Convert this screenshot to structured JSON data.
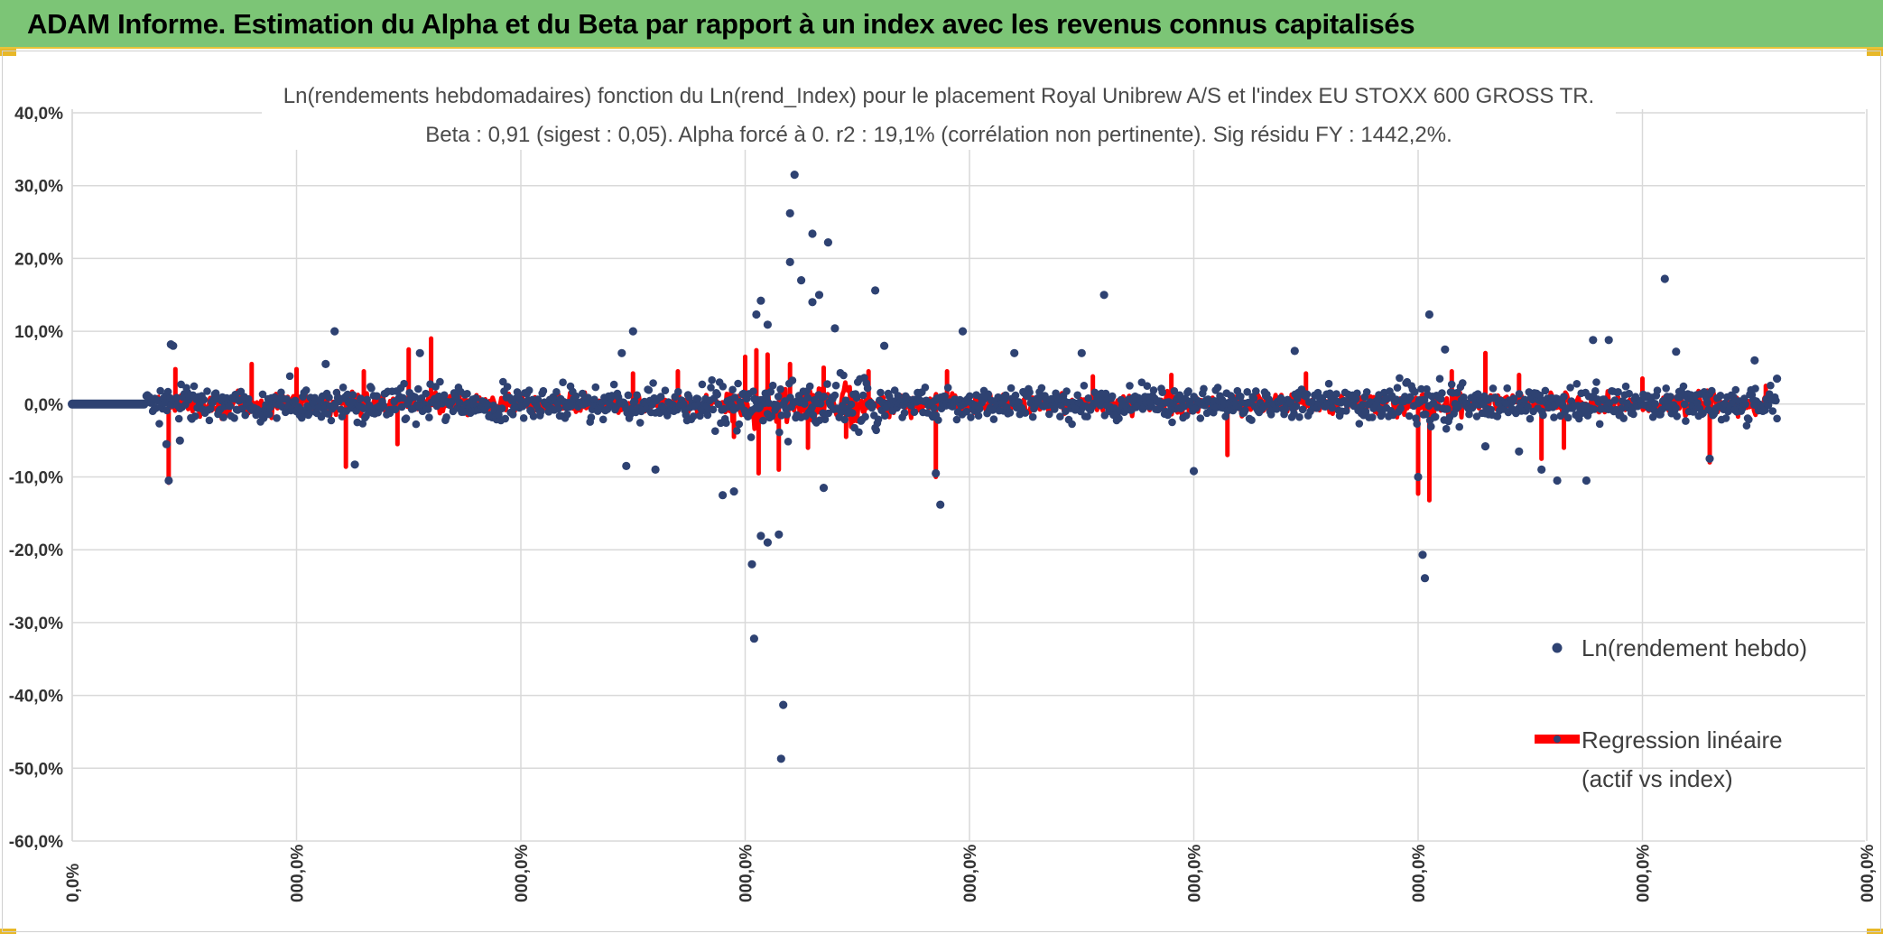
{
  "banner": {
    "title": "ADAM Informe. Estimation du Alpha et du Beta par rapport à un index avec les revenus connus capitalisés",
    "background": "#7cc576"
  },
  "chart_data": {
    "type": "scatter",
    "title_line1": "Ln(rendements hebdomadaires) fonction du Ln(rend_Index) pour le placement Royal Unibrew A/S et l'index EU STOXX 600 GROSS TR.",
    "title_line2": "Beta : 0,91 (sigest : 0,05). Alpha forcé à 0. r2 : 19,1% (corrélation non pertinente). Sig résidu FY : 1442,2%.",
    "xlabel": "",
    "ylabel": "",
    "ylim": [
      -60,
      40
    ],
    "y_ticks": [
      "40,0%",
      "30,0%",
      "20,0%",
      "10,0%",
      "0,0%",
      "-10,0%",
      "-20,0%",
      "-30,0%",
      "-40,0%",
      "-50,0%",
      "-60,0%"
    ],
    "x_ticks": [
      "0,0%",
      "000,0%",
      "000,0%",
      "000,0%",
      "000,0%",
      "000,0%",
      "000,0%",
      "000,0%",
      "000,0%"
    ],
    "grid": true,
    "legend_position": "right",
    "series": [
      {
        "name": "Ln(rendement hebdo)",
        "kind": "points",
        "color": "#2e4272"
      },
      {
        "name": "Regression linéaire (actif vs index)",
        "kind": "line",
        "color": "#ff0000"
      }
    ],
    "legend": {
      "points_label": "Ln(rendement hebdo)",
      "line_label_1": "Regression linéaire",
      "line_label_2": "(actif vs index)"
    },
    "flat_segment": {
      "x": [
        0,
        0.32
      ],
      "y": 0
    },
    "outliers": [
      [
        0.43,
        -10.5
      ],
      [
        0.44,
        8.2
      ],
      [
        0.45,
        8.0
      ],
      [
        0.42,
        -5.5
      ],
      [
        0.48,
        -5.0
      ],
      [
        1.17,
        10.0
      ],
      [
        1.13,
        5.5
      ],
      [
        1.26,
        -8.3
      ],
      [
        1.55,
        7.0
      ],
      [
        2.45,
        7.0
      ],
      [
        2.5,
        10.0
      ],
      [
        2.47,
        -8.5
      ],
      [
        2.6,
        -9.0
      ],
      [
        2.9,
        -12.5
      ],
      [
        2.95,
        -12.0
      ],
      [
        3.05,
        12.3
      ],
      [
        3.07,
        14.2
      ],
      [
        3.1,
        10.9
      ],
      [
        3.03,
        -22.0
      ],
      [
        3.04,
        -32.2
      ],
      [
        3.07,
        -18.1
      ],
      [
        3.1,
        -19.0
      ],
      [
        3.15,
        -17.9
      ],
      [
        3.17,
        -41.3
      ],
      [
        3.16,
        -48.7
      ],
      [
        3.2,
        26.2
      ],
      [
        3.22,
        31.5
      ],
      [
        3.2,
        19.5
      ],
      [
        3.25,
        17.0
      ],
      [
        3.3,
        23.4
      ],
      [
        3.33,
        15.0
      ],
      [
        3.37,
        22.2
      ],
      [
        3.3,
        14.0
      ],
      [
        3.4,
        10.4
      ],
      [
        3.35,
        -11.5
      ],
      [
        3.58,
        15.6
      ],
      [
        3.62,
        8.0
      ],
      [
        3.87,
        -13.8
      ],
      [
        3.85,
        -9.5
      ],
      [
        3.97,
        10.0
      ],
      [
        4.2,
        7.0
      ],
      [
        4.6,
        15.0
      ],
      [
        4.5,
        7.0
      ],
      [
        5.0,
        -9.2
      ],
      [
        5.45,
        7.3
      ],
      [
        6.0,
        -10.0
      ],
      [
        6.02,
        -20.7
      ],
      [
        6.03,
        -23.9
      ],
      [
        6.05,
        12.3
      ],
      [
        6.12,
        7.5
      ],
      [
        6.3,
        -5.8
      ],
      [
        6.45,
        -6.5
      ],
      [
        6.55,
        -9.0
      ],
      [
        6.62,
        -10.5
      ],
      [
        6.75,
        -10.5
      ],
      [
        6.78,
        8.8
      ],
      [
        6.85,
        8.8
      ],
      [
        7.1,
        17.2
      ],
      [
        7.15,
        7.2
      ],
      [
        7.3,
        -7.5
      ],
      [
        7.5,
        6.0
      ],
      [
        7.6,
        3.5
      ]
    ],
    "red_spikes": [
      [
        0.43,
        -10.8
      ],
      [
        0.46,
        4.8
      ],
      [
        0.8,
        5.5
      ],
      [
        1.0,
        4.8
      ],
      [
        1.22,
        -8.6
      ],
      [
        1.3,
        4.5
      ],
      [
        1.45,
        -5.5
      ],
      [
        1.5,
        7.5
      ],
      [
        1.6,
        9.0
      ],
      [
        2.5,
        4.2
      ],
      [
        2.7,
        4.5
      ],
      [
        2.95,
        -4.5
      ],
      [
        3.0,
        6.5
      ],
      [
        3.05,
        7.4
      ],
      [
        3.06,
        -9.5
      ],
      [
        3.1,
        6.8
      ],
      [
        3.15,
        -9.0
      ],
      [
        3.2,
        5.5
      ],
      [
        3.28,
        -6.0
      ],
      [
        3.35,
        5.0
      ],
      [
        3.45,
        -4.5
      ],
      [
        3.55,
        4.5
      ],
      [
        3.85,
        -10.0
      ],
      [
        3.9,
        4.5
      ],
      [
        4.55,
        3.8
      ],
      [
        4.9,
        4.0
      ],
      [
        5.15,
        -7.0
      ],
      [
        5.5,
        4.2
      ],
      [
        6.0,
        -12.3
      ],
      [
        6.05,
        -13.2
      ],
      [
        6.15,
        4.5
      ],
      [
        6.3,
        7.0
      ],
      [
        6.45,
        4.0
      ],
      [
        6.55,
        -7.5
      ],
      [
        6.65,
        -6.0
      ],
      [
        7.0,
        3.5
      ],
      [
        7.3,
        -8.0
      ],
      [
        7.55,
        2.5
      ]
    ]
  }
}
